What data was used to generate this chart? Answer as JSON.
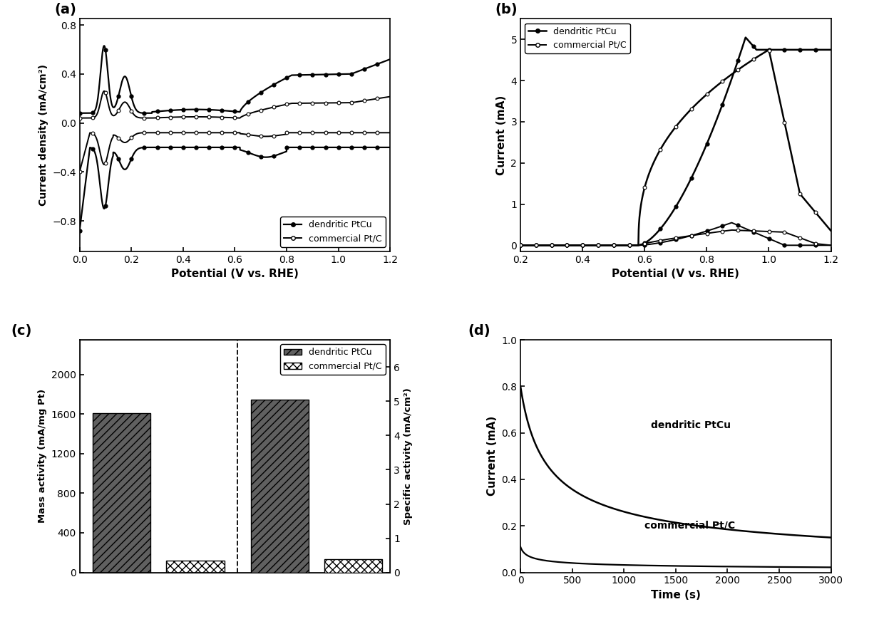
{
  "fig_width": 12.4,
  "fig_height": 8.83,
  "bg_color": "#ffffff",
  "panel_labels": [
    "(a)",
    "(b)",
    "(c)",
    "(d)"
  ],
  "panel_label_fontsize": 14,
  "a_xlim": [
    0.0,
    1.2
  ],
  "a_ylim": [
    -1.05,
    0.85
  ],
  "a_xticks": [
    0.0,
    0.2,
    0.4,
    0.6,
    0.8,
    1.0,
    1.2
  ],
  "a_yticks": [
    -0.8,
    -0.4,
    0.0,
    0.4,
    0.8
  ],
  "a_xlabel": "Potential (V vs. RHE)",
  "a_ylabel": "Current density (mA/cm²)",
  "b_xlim": [
    0.2,
    1.2
  ],
  "b_ylim": [
    -0.15,
    5.5
  ],
  "b_xticks": [
    0.2,
    0.4,
    0.6,
    0.8,
    1.0,
    1.2
  ],
  "b_yticks": [
    0,
    1,
    2,
    3,
    4,
    5
  ],
  "b_xlabel": "Potential (V vs. RHE)",
  "b_ylabel": "Current (mA)",
  "c_bar_mass_dendritic": 1610,
  "c_bar_mass_commercial": 120,
  "c_bar_spec_dendritic": 5.05,
  "c_bar_spec_commercial": 0.38,
  "c_ylabel_left": "Mass activity (mA/mg Pt)",
  "c_ylabel_right": "Specific activity (mA/cm²)",
  "c_yticks_left": [
    0,
    400,
    800,
    1200,
    1600,
    2000
  ],
  "c_yticks_right": [
    0,
    1,
    2,
    3,
    4,
    5,
    6
  ],
  "d_xlim": [
    0,
    3000
  ],
  "d_ylim": [
    0.0,
    1.0
  ],
  "d_xticks": [
    0,
    500,
    1000,
    1500,
    2000,
    2500,
    3000
  ],
  "d_yticks": [
    0.0,
    0.2,
    0.4,
    0.6,
    0.8,
    1.0
  ],
  "d_xlabel": "Time (s)",
  "d_ylabel": "Current (mA)",
  "d_dendritic_label": "dendritic PtCu",
  "d_commercial_label": "commercial Pt/C"
}
